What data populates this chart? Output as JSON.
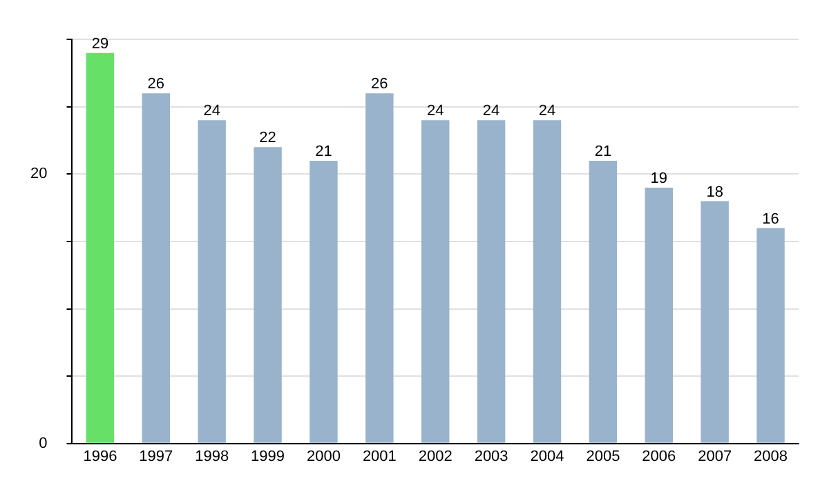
{
  "chart_data": {
    "type": "bar",
    "categories": [
      "1996",
      "1997",
      "1998",
      "1999",
      "2000",
      "2001",
      "2002",
      "2003",
      "2004",
      "2005",
      "2006",
      "2007",
      "2008"
    ],
    "values": [
      29,
      26,
      24,
      22,
      21,
      26,
      24,
      24,
      24,
      21,
      19,
      18,
      16
    ],
    "colors": [
      "#66e066",
      "#9ab3cc",
      "#9ab3cc",
      "#9ab3cc",
      "#9ab3cc",
      "#9ab3cc",
      "#9ab3cc",
      "#9ab3cc",
      "#9ab3cc",
      "#9ab3cc",
      "#9ab3cc",
      "#9ab3cc",
      "#9ab3cc"
    ],
    "ylim": [
      0,
      30
    ],
    "yticks": [
      0,
      {
        "value": 5,
        "label": null
      },
      {
        "value": 10,
        "label": null
      },
      {
        "value": 15,
        "label": null
      },
      20,
      {
        "value": 25,
        "label": null
      },
      {
        "value": 30,
        "label": null
      }
    ],
    "grid": "y",
    "data_labels": true,
    "legend": false
  }
}
